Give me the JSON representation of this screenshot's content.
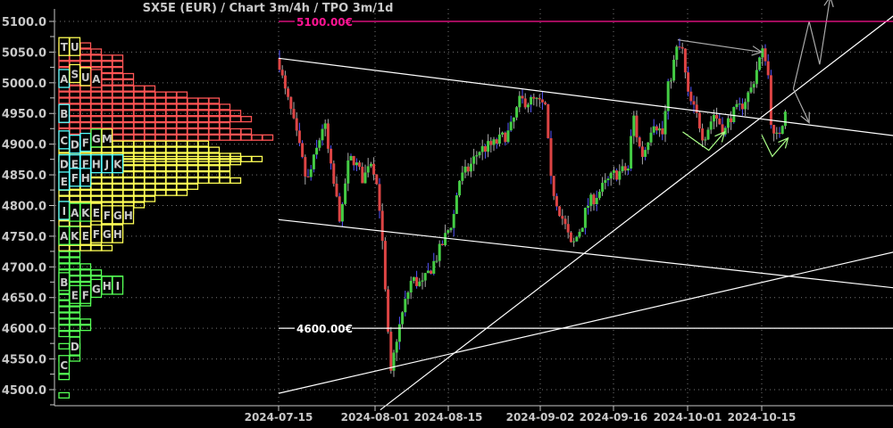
{
  "title": "SX5E (EUR) /  Chart 3m/4h / TPO 3m/1d",
  "colors": {
    "background": "#000000",
    "axis": "#c8c8c8",
    "grid": "#777777",
    "up": "#44cc44",
    "down": "#dd4444",
    "wick_alt": "#5555ff",
    "level_5100": "#ff1493",
    "level_4600": "#ffffff",
    "tpo_red": "#ff5555",
    "tpo_yellow": "#ffff55",
    "tpo_green": "#55ff55",
    "tpo_cyan": "#55ffff",
    "arrow_gray": "#aaaaaa",
    "arrow_green": "#aaff88"
  },
  "chart_data": {
    "type": "candlestick",
    "title": "SX5E (EUR) /  Chart 3m/4h / TPO 3m/1d",
    "ylim": [
      4480,
      5120
    ],
    "y_ticks": [
      "5100.0",
      "5050.0",
      "5000.0",
      "4950.0",
      "4900.0",
      "4850.0",
      "4800.0",
      "4750.0",
      "4700.0",
      "4650.0",
      "4600.0",
      "4550.0",
      "4500.0"
    ],
    "x_ticks": [
      "2024-07-15",
      "2024-08-01",
      "2024-08-15",
      "2024-09-02",
      "2024-09-16",
      "2024-10-01",
      "2024-10-15"
    ],
    "grid": true,
    "price_path": [
      [
        "2024-07-15",
        5040
      ],
      [
        "2024-07-16",
        4990
      ],
      [
        "2024-07-17",
        4960
      ],
      [
        "2024-07-19",
        4880
      ],
      [
        "2024-07-20",
        4835
      ],
      [
        "2024-07-22",
        4900
      ],
      [
        "2024-07-23",
        4940
      ],
      [
        "2024-07-24",
        4870
      ],
      [
        "2024-07-26",
        4770
      ],
      [
        "2024-07-27",
        4860
      ],
      [
        "2024-07-28",
        4880
      ],
      [
        "2024-07-30",
        4840
      ],
      [
        "2024-07-31",
        4880
      ],
      [
        "2024-08-01",
        4855
      ],
      [
        "2024-08-02",
        4790
      ],
      [
        "2024-08-03",
        4650
      ],
      [
        "2024-08-04",
        4520
      ],
      [
        "2024-08-05",
        4580
      ],
      [
        "2024-08-07",
        4650
      ],
      [
        "2024-08-08",
        4680
      ],
      [
        "2024-08-10",
        4670
      ],
      [
        "2024-08-13",
        4720
      ],
      [
        "2024-08-16",
        4780
      ],
      [
        "2024-08-17",
        4840
      ],
      [
        "2024-08-19",
        4860
      ],
      [
        "2024-08-21",
        4890
      ],
      [
        "2024-08-24",
        4900
      ],
      [
        "2024-08-27",
        4920
      ],
      [
        "2024-08-29",
        4970
      ],
      [
        "2024-09-01",
        4970
      ],
      [
        "2024-09-03",
        4960
      ],
      [
        "2024-09-04",
        4840
      ],
      [
        "2024-09-05",
        4810
      ],
      [
        "2024-09-07",
        4760
      ],
      [
        "2024-09-08",
        4730
      ],
      [
        "2024-09-10",
        4770
      ],
      [
        "2024-09-11",
        4800
      ],
      [
        "2024-09-14",
        4830
      ],
      [
        "2024-09-16",
        4850
      ],
      [
        "2024-09-19",
        4860
      ],
      [
        "2024-09-20",
        4950
      ],
      [
        "2024-09-21",
        4900
      ],
      [
        "2024-09-22",
        4880
      ],
      [
        "2024-09-24",
        4940
      ],
      [
        "2024-09-26",
        4915
      ],
      [
        "2024-09-27",
        4990
      ],
      [
        "2024-09-29",
        5060
      ],
      [
        "2024-09-30",
        5050
      ],
      [
        "2024-10-01",
        4980
      ],
      [
        "2024-10-03",
        4940
      ],
      [
        "2024-10-04",
        4910
      ],
      [
        "2024-10-06",
        4950
      ],
      [
        "2024-10-08",
        4920
      ],
      [
        "2024-10-09",
        4945
      ],
      [
        "2024-10-11",
        4960
      ],
      [
        "2024-10-13",
        4990
      ],
      [
        "2024-10-15",
        5050
      ],
      [
        "2024-10-16",
        5040
      ],
      [
        "2024-10-17",
        4910
      ],
      [
        "2024-10-18",
        4910
      ],
      [
        "2024-10-19",
        4940
      ],
      [
        "2024-10-20",
        4985
      ]
    ],
    "levels": [
      {
        "price": 5100,
        "label": "5100.00€",
        "color": "#ff1493"
      },
      {
        "price": 4600,
        "label": "4600.00€",
        "color": "#ffffff"
      }
    ],
    "trend_lines": [
      {
        "from": [
          "2024-07-15",
          5040
        ],
        "to": [
          "2024-11-09",
          4914
        ]
      },
      {
        "from": [
          "2024-07-15",
          4777
        ],
        "to": [
          "2024-11-09",
          4666
        ]
      },
      {
        "from": [
          "2024-07-15",
          4494
        ],
        "to": [
          "2024-11-09",
          4724
        ]
      },
      {
        "from": [
          "2024-08-02",
          4467
        ],
        "to": [
          "2024-11-09",
          5109
        ]
      }
    ],
    "arrows_gray": [
      [
        [
          "2024-09-29",
          5070
        ],
        [
          "2024-10-15",
          5050
        ]
      ],
      [
        [
          "2024-10-21",
          4990
        ],
        [
          "2024-10-24",
          5100
        ],
        [
          "2024-10-26",
          5030
        ],
        [
          "2024-10-28",
          5140
        ]
      ],
      [
        [
          "2024-10-21",
          4990
        ],
        [
          "2024-10-24",
          4935
        ]
      ]
    ],
    "arrows_green": [
      [
        [
          "2024-09-30",
          4920
        ],
        [
          "2024-10-05",
          4890
        ],
        [
          "2024-10-08",
          4920
        ]
      ],
      [
        [
          "2024-10-15",
          4915
        ],
        [
          "2024-10-17",
          4880
        ],
        [
          "2024-10-20",
          4910
        ]
      ]
    ],
    "tpo_profile": [
      {
        "price": 5060,
        "count": 3,
        "color": "red"
      },
      {
        "price": 5050,
        "count": 4,
        "color": "red"
      },
      {
        "price": 5040,
        "count": 6,
        "color": "red"
      },
      {
        "price": 5030,
        "count": 6,
        "color": "red"
      },
      {
        "price": 5020,
        "count": 6,
        "color": "red"
      },
      {
        "price": 5010,
        "count": 7,
        "color": "red"
      },
      {
        "price": 5000,
        "count": 7,
        "color": "red"
      },
      {
        "price": 4990,
        "count": 9,
        "color": "red"
      },
      {
        "price": 4980,
        "count": 12,
        "color": "red"
      },
      {
        "price": 4970,
        "count": 15,
        "color": "red"
      },
      {
        "price": 4960,
        "count": 16,
        "color": "red"
      },
      {
        "price": 4950,
        "count": 17,
        "color": "red"
      },
      {
        "price": 4940,
        "count": 18,
        "color": "red"
      },
      {
        "price": 4930,
        "count": 16,
        "color": "red"
      },
      {
        "price": 4920,
        "count": 18,
        "color": "red"
      },
      {
        "price": 4910,
        "count": 20,
        "color": "red"
      },
      {
        "price": 4900,
        "count": 14,
        "color": "yellow"
      },
      {
        "price": 4890,
        "count": 15,
        "color": "yellow"
      },
      {
        "price": 4880,
        "count": 17,
        "color": "yellow"
      },
      {
        "price": 4875,
        "count": 19,
        "color": "yellow"
      },
      {
        "price": 4870,
        "count": 17,
        "color": "yellow"
      },
      {
        "price": 4860,
        "count": 16,
        "color": "yellow"
      },
      {
        "price": 4850,
        "count": 16,
        "color": "yellow"
      },
      {
        "price": 4840,
        "count": 17,
        "color": "yellow"
      },
      {
        "price": 4830,
        "count": 13,
        "color": "yellow"
      },
      {
        "price": 4820,
        "count": 12,
        "color": "yellow"
      },
      {
        "price": 4810,
        "count": 9,
        "color": "yellow"
      },
      {
        "price": 4800,
        "count": 8,
        "color": "yellow"
      },
      {
        "price": 4790,
        "count": 7,
        "color": "yellow"
      },
      {
        "price": 4780,
        "count": 5,
        "color": "yellow"
      },
      {
        "price": 4770,
        "count": 4,
        "color": "yellow"
      },
      {
        "price": 4760,
        "count": 6,
        "color": "yellow"
      },
      {
        "price": 4750,
        "count": 6,
        "color": "yellow"
      },
      {
        "price": 4740,
        "count": 4,
        "color": "yellow"
      },
      {
        "price": 4730,
        "count": 5,
        "color": "yellow"
      },
      {
        "price": 4720,
        "count": 2,
        "color": "green"
      },
      {
        "price": 4710,
        "count": 2,
        "color": "green"
      },
      {
        "price": 4700,
        "count": 3,
        "color": "green"
      },
      {
        "price": 4690,
        "count": 4,
        "color": "green"
      },
      {
        "price": 4680,
        "count": 6,
        "color": "green"
      },
      {
        "price": 4670,
        "count": 6,
        "color": "green"
      },
      {
        "price": 4660,
        "count": 4,
        "color": "green"
      },
      {
        "price": 4650,
        "count": 3,
        "color": "green"
      },
      {
        "price": 4640,
        "count": 3,
        "color": "green"
      },
      {
        "price": 4630,
        "count": 2,
        "color": "green"
      },
      {
        "price": 4620,
        "count": 2,
        "color": "green"
      },
      {
        "price": 4610,
        "count": 3,
        "color": "green"
      },
      {
        "price": 4600,
        "count": 3,
        "color": "green"
      },
      {
        "price": 4590,
        "count": 2,
        "color": "green"
      },
      {
        "price": 4570,
        "count": 2,
        "color": "green"
      },
      {
        "price": 4550,
        "count": 2,
        "color": "green"
      },
      {
        "price": 4520,
        "count": 1,
        "color": "green"
      },
      {
        "price": 4490,
        "count": 1,
        "color": "green"
      }
    ],
    "tpo_letters": [
      {
        "letter": "T",
        "price": 5059,
        "col": 0,
        "color": "yellow"
      },
      {
        "letter": "U",
        "price": 5059,
        "col": 1,
        "color": "yellow"
      },
      {
        "letter": "A",
        "price": 5007,
        "col": 0,
        "color": "cyan"
      },
      {
        "letter": "S",
        "price": 5015,
        "col": 1,
        "color": "yellow"
      },
      {
        "letter": "U",
        "price": 5010,
        "col": 2,
        "color": "yellow"
      },
      {
        "letter": "A",
        "price": 5007,
        "col": 3,
        "color": "red"
      },
      {
        "letter": "B",
        "price": 4950,
        "col": 0,
        "color": "cyan"
      },
      {
        "letter": "C",
        "price": 4907,
        "col": 0,
        "color": "cyan"
      },
      {
        "letter": "D",
        "price": 4900,
        "col": 1,
        "color": "cyan"
      },
      {
        "letter": "F",
        "price": 4903,
        "col": 2,
        "color": "cyan"
      },
      {
        "letter": "G",
        "price": 4910,
        "col": 3,
        "color": "green"
      },
      {
        "letter": "M",
        "price": 4910,
        "col": 4,
        "color": "yellow"
      },
      {
        "letter": "D",
        "price": 4868,
        "col": 0,
        "color": "cyan"
      },
      {
        "letter": "E",
        "price": 4868,
        "col": 1,
        "color": "cyan"
      },
      {
        "letter": "F",
        "price": 4868,
        "col": 2,
        "color": "cyan"
      },
      {
        "letter": "H",
        "price": 4868,
        "col": 3,
        "color": "cyan"
      },
      {
        "letter": "J",
        "price": 4868,
        "col": 4,
        "color": "cyan"
      },
      {
        "letter": "K",
        "price": 4868,
        "col": 5,
        "color": "cyan"
      },
      {
        "letter": "E",
        "price": 4840,
        "col": 0,
        "color": "cyan"
      },
      {
        "letter": "F",
        "price": 4846,
        "col": 1,
        "color": "cyan"
      },
      {
        "letter": "H",
        "price": 4846,
        "col": 2,
        "color": "cyan"
      },
      {
        "letter": "I",
        "price": 4792,
        "col": 0,
        "color": "cyan"
      },
      {
        "letter": "A",
        "price": 4789,
        "col": 1,
        "color": "green"
      },
      {
        "letter": "K",
        "price": 4789,
        "col": 2,
        "color": "green"
      },
      {
        "letter": "E",
        "price": 4789,
        "col": 3,
        "color": "yellow"
      },
      {
        "letter": "F",
        "price": 4785,
        "col": 4,
        "color": "yellow"
      },
      {
        "letter": "G",
        "price": 4785,
        "col": 5,
        "color": "yellow"
      },
      {
        "letter": "H",
        "price": 4785,
        "col": 6,
        "color": "yellow"
      },
      {
        "letter": "A",
        "price": 4751,
        "col": 0,
        "color": "green"
      },
      {
        "letter": "K",
        "price": 4751,
        "col": 1,
        "color": "green"
      },
      {
        "letter": "E",
        "price": 4751,
        "col": 2,
        "color": "yellow"
      },
      {
        "letter": "F",
        "price": 4754,
        "col": 3,
        "color": "yellow"
      },
      {
        "letter": "G",
        "price": 4754,
        "col": 4,
        "color": "yellow"
      },
      {
        "letter": "H",
        "price": 4754,
        "col": 5,
        "color": "yellow"
      },
      {
        "letter": "B",
        "price": 4676,
        "col": 0,
        "color": "green"
      },
      {
        "letter": "E",
        "price": 4655,
        "col": 1,
        "color": "green"
      },
      {
        "letter": "F",
        "price": 4655,
        "col": 2,
        "color": "green"
      },
      {
        "letter": "G",
        "price": 4665,
        "col": 3,
        "color": "green"
      },
      {
        "letter": "H",
        "price": 4670,
        "col": 4,
        "color": "green"
      },
      {
        "letter": "I",
        "price": 4670,
        "col": 5,
        "color": "green"
      },
      {
        "letter": "D",
        "price": 4571,
        "col": 1,
        "color": "green"
      },
      {
        "letter": "C",
        "price": 4541,
        "col": 0,
        "color": "green"
      }
    ]
  }
}
